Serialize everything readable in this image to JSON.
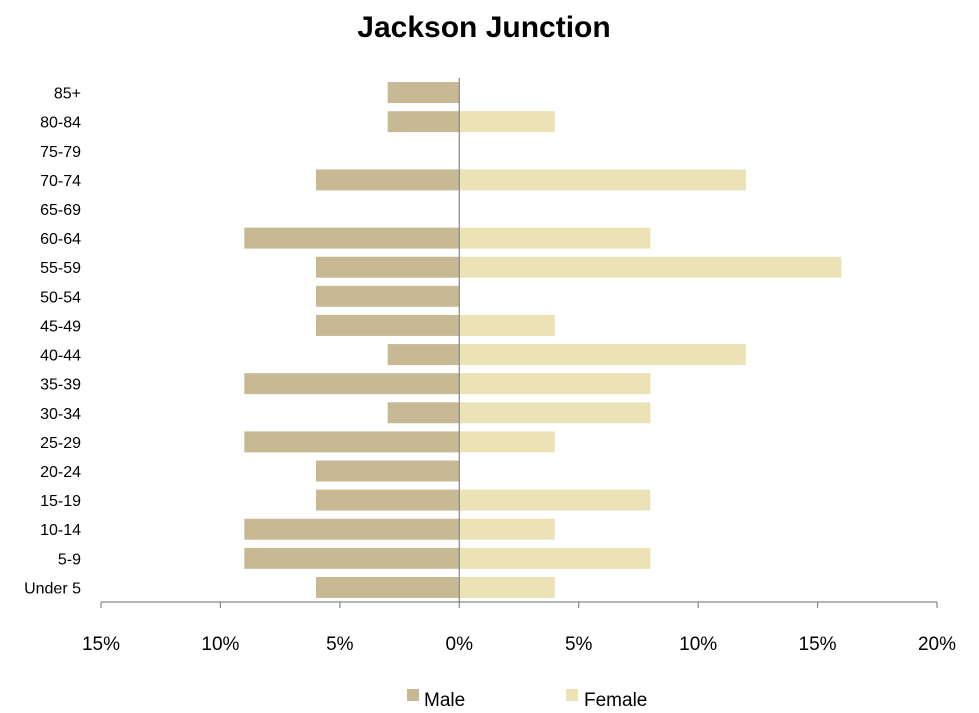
{
  "chart_data": {
    "type": "bar",
    "orientation": "horizontal",
    "title": "Jackson Junction",
    "categories": [
      "Under 5",
      "5-9",
      "10-14",
      "15-19",
      "20-24",
      "25-29",
      "30-34",
      "35-39",
      "40-44",
      "45-49",
      "50-54",
      "55-59",
      "60-64",
      "65-69",
      "70-74",
      "75-79",
      "80-84",
      "85+"
    ],
    "series": [
      {
        "name": "Male",
        "color": "#c8b995",
        "values": [
          6,
          9,
          9,
          6,
          6,
          9,
          3,
          9,
          3,
          6,
          6,
          6,
          9,
          0,
          6,
          0,
          3,
          3
        ]
      },
      {
        "name": "Female",
        "color": "#ebe2b5",
        "values": [
          4,
          8,
          4,
          8,
          0,
          4,
          8,
          8,
          12,
          4,
          0,
          16,
          8,
          0,
          12,
          0,
          4,
          0
        ]
      }
    ],
    "x_ticks": [
      "15%",
      "10%",
      "5%",
      "0%",
      "5%",
      "10%",
      "15%",
      "20%"
    ],
    "xlim": [
      -15,
      20
    ],
    "xlabel": "",
    "ylabel": "",
    "grid": false,
    "legend": "bottom"
  }
}
